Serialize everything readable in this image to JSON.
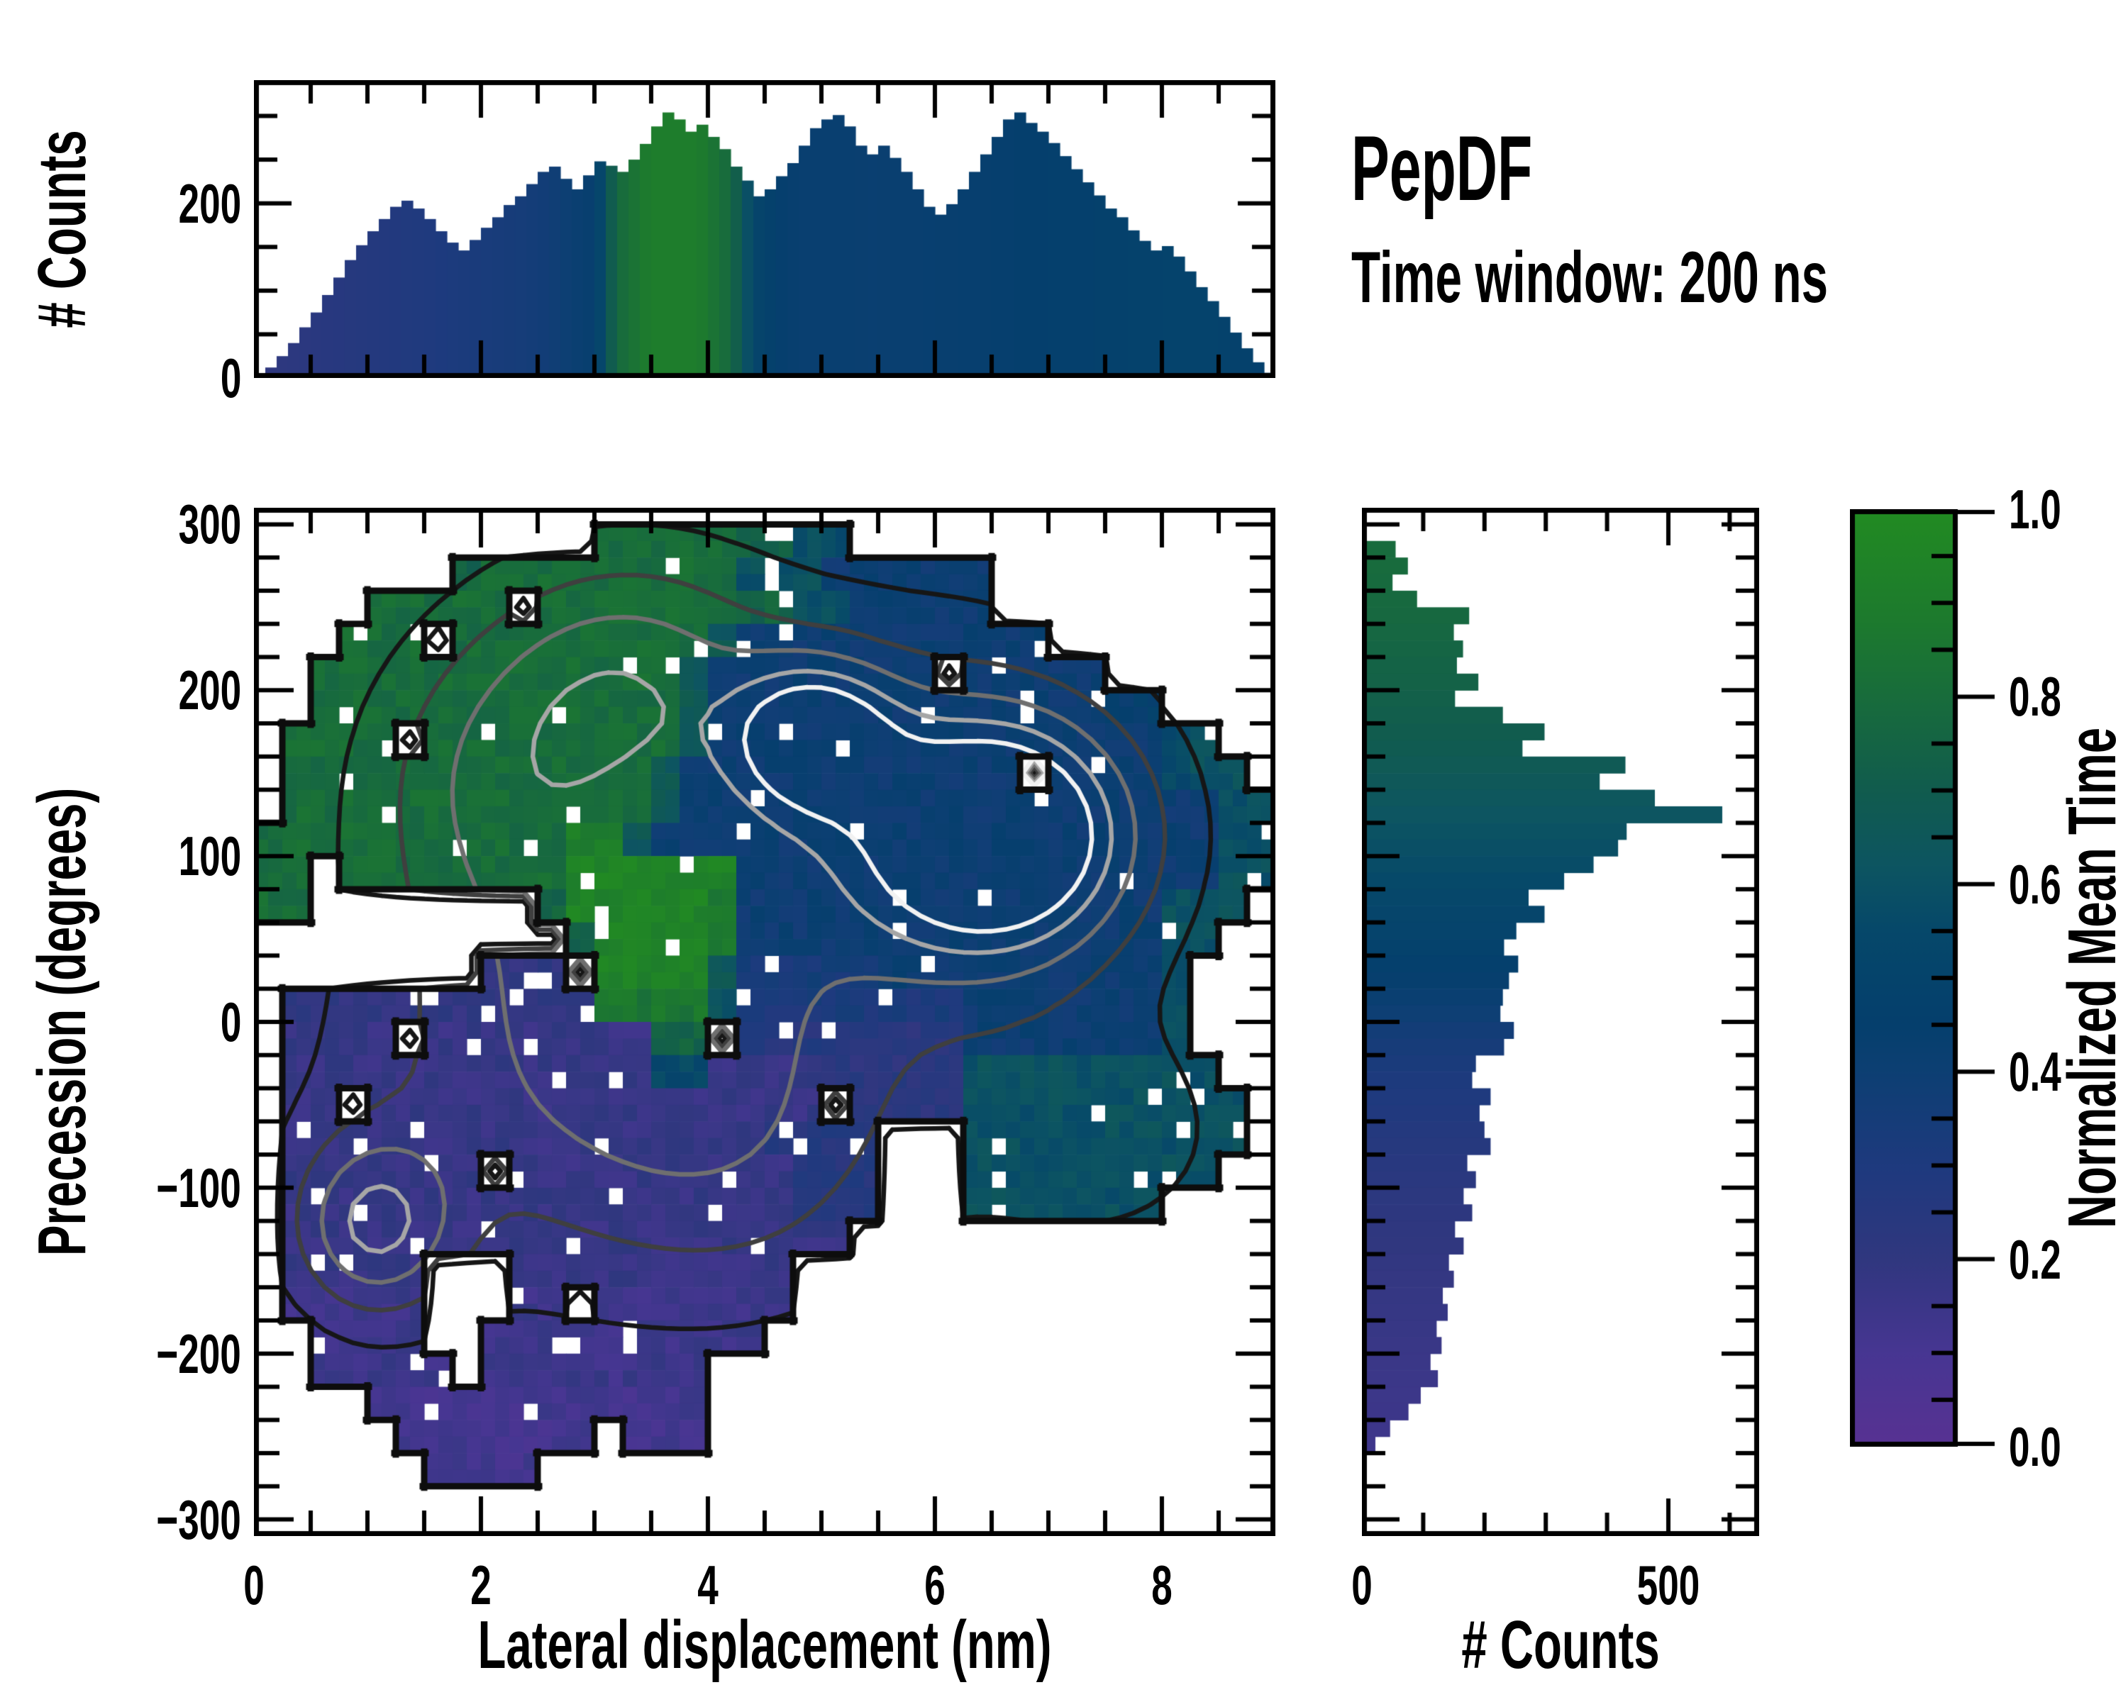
{
  "title": {
    "line1": "PepDF",
    "line2": "Time window: 200 ns"
  },
  "axes": {
    "x_label": "Lateral displacement (nm)",
    "y_label": "Precession (degrees)",
    "top_hist_y_label": "# Counts",
    "right_hist_x_label": "# Counts"
  },
  "colormap": {
    "label": "Normalized Mean Time",
    "stops": [
      [
        0,
        "#583293"
      ],
      [
        0.1,
        "#473692"
      ],
      [
        0.2,
        "#30377f"
      ],
      [
        0.3,
        "#1e3a7e"
      ],
      [
        0.4,
        "#0d3f73"
      ],
      [
        0.45,
        "#053f6d"
      ],
      [
        0.55,
        "#06486a"
      ],
      [
        0.62,
        "#0d5561"
      ],
      [
        0.7,
        "#115c4e"
      ],
      [
        0.78,
        "#17693f"
      ],
      [
        0.88,
        "#1d7a2e"
      ],
      [
        1,
        "#228b22"
      ]
    ],
    "tick_values": [
      0,
      0.2,
      0.4,
      0.6,
      0.8,
      1.0
    ],
    "tick_labels": [
      "0.0",
      "0.2",
      "0.4",
      "0.6",
      "0.8",
      "1.0"
    ],
    "minor_tick_step": 0.05
  },
  "chart_data": [
    {
      "type": "bar",
      "name": "top_marginal_histogram",
      "ylabel": "# Counts",
      "xlim": [
        0,
        9
      ],
      "ylim": [
        0,
        341
      ],
      "bin_width": 0.1,
      "x_start": 0.05,
      "yticks": {
        "major_values": [
          0,
          200
        ],
        "major_labels": [
          "0",
          "200"
        ],
        "minor_step": 50
      },
      "xticks": {
        "major_step": 2,
        "minor_step": 0.5
      },
      "values": [
        4,
        12,
        25,
        40,
        58,
        75,
        95,
        115,
        135,
        152,
        168,
        182,
        196,
        203,
        194,
        182,
        168,
        155,
        146,
        158,
        172,
        184,
        198,
        208,
        222,
        236,
        242,
        228,
        216,
        232,
        248,
        243,
        236,
        250,
        268,
        288,
        304,
        296,
        282,
        290,
        276,
        262,
        242,
        226,
        208,
        216,
        231,
        246,
        266,
        286,
        296,
        301,
        288,
        266,
        256,
        266,
        252,
        236,
        216,
        196,
        187,
        199,
        216,
        236,
        256,
        276,
        296,
        304,
        292,
        282,
        269,
        254,
        239,
        224,
        209,
        194,
        184,
        169,
        157,
        146,
        151,
        139,
        122,
        104,
        88,
        70,
        52,
        34,
        18,
        6
      ],
      "bar_color_mean_time_profile": [
        [
          0,
          0.2
        ],
        [
          0.6,
          0.24
        ],
        [
          1.6,
          0.3
        ],
        [
          2.5,
          0.36
        ],
        [
          3.0,
          0.44
        ],
        [
          3.2,
          0.78
        ],
        [
          3.5,
          0.9
        ],
        [
          3.9,
          0.9
        ],
        [
          4.2,
          0.78
        ],
        [
          4.4,
          0.52
        ],
        [
          4.7,
          0.43
        ],
        [
          5.5,
          0.42
        ],
        [
          6.5,
          0.44
        ],
        [
          7.5,
          0.47
        ],
        [
          8.3,
          0.5
        ],
        [
          9,
          0.45
        ]
      ]
    },
    {
      "type": "heatmap",
      "name": "mean_time_map",
      "xlabel": "Lateral displacement (nm)",
      "ylabel": "Precession (degrees)",
      "value_label": "Normalized Mean Time",
      "xlim": [
        0,
        9
      ],
      "ylim": [
        -310,
        310
      ],
      "xticks": {
        "major_values": [
          0,
          2,
          4,
          6,
          8
        ],
        "major_labels": [
          "0",
          "2",
          "4",
          "6",
          "8"
        ],
        "minor_step": 0.5
      },
      "yticks": {
        "major_values": [
          300,
          200,
          100,
          0,
          -100,
          -200,
          -300
        ],
        "major_labels": [
          "300",
          "200",
          "100",
          "0",
          "−100",
          "−200",
          "−300"
        ],
        "minor_step": 20
      },
      "grid_encoding": "each char is a cell; '.'=empty, base36 digit/35 = normalized mean time; cols: x=0..9 nm step 0.25; rows: y=300..-300 deg step -20",
      "grid": [
        "............sssssqqlj...............",
        ".......qsssssssssllleeeeee..........",
        "....sssss.sssssssqqllefeee..........",
        "...sss.sssssssssneeeeeeeeeee........",
        "..sssssssssssssneeeeeeee.eeeee......",
        "..sssssssssssssneeeeeeeeeeeeeefg....",
        ".ssss.sssssssssneeeeeeeeeeeeeeeejl..",
        ".sssssssssssssneeeeeeeeeeee.eeeejll.",
        ".sssssssssssssneeeeeeeeeeeeeeeeeeell",
        "ssssssssssswwneeeeeeeeeeeeeeeeeeeell",
        "ss.ssssssssxxxxxxeeeeeeeeeeeeeeeeell",
        "ss........qxxxxxueeeeeeeeeeeeeeelll.",
        "...........qxxxxueeeeeeeeeeeeeeell..",
        "........777.xxxxnccccceeeeeeeeeel...",
        ".77777777777uuuulbbbbbbbbeeeeeeel...",
        ".6666.66666666qq.99999988eeeeeeel...",
        ".6666666666666jj666688888lllllllll..",
        ".66.6666666666666666.8888llllllllll.",
        ".666666666666666669999...llllllllll.",
        ".6666666.6666666666999...lllllllll..",
        ".666666666666666666999...lllllll....",
        ".66666666666666666666...............",
        ".66666...6666666666.................",
        ".55555...55.5555555.................",
        "..5555..5555555555..................",
        "..55555.55555555....................",
        "....444444444444....................",
        ".....4444444.444....................",
        "......4444..........................",
        "...................................."
      ],
      "count_density_peaks_estimated": [
        {
          "x": 6.6,
          "y": 112,
          "sx": 0.8,
          "sy": 50,
          "amp": 1.0
        },
        {
          "x": 4.95,
          "y": 172,
          "sx": 0.5,
          "sy": 32,
          "amp": 0.72
        },
        {
          "x": 3.3,
          "y": 210,
          "sx": 0.9,
          "sy": 55,
          "amp": 0.5
        },
        {
          "x": 2.1,
          "y": 145,
          "sx": 0.85,
          "sy": 65,
          "amp": 0.4
        },
        {
          "x": 5.7,
          "y": 115,
          "sx": 1.5,
          "sy": 95,
          "amp": 0.45
        },
        {
          "x": 1.05,
          "y": -123,
          "sx": 0.5,
          "sy": 38,
          "amp": 0.62
        },
        {
          "x": 2.3,
          "y": -45,
          "sx": 1.4,
          "sy": 95,
          "amp": 0.3
        },
        {
          "x": 4.4,
          "y": -85,
          "sx": 1.1,
          "sy": 70,
          "amp": 0.3
        },
        {
          "x": 3.4,
          "y": 30,
          "sx": 1.2,
          "sy": 80,
          "amp": 0.32
        },
        {
          "x": 7.4,
          "y": -70,
          "sx": 0.9,
          "sy": 50,
          "amp": 0.24
        }
      ],
      "contour_levels": [
        0.16,
        0.34,
        0.52,
        0.7,
        0.86
      ],
      "contour_colors": [
        "#161616",
        "#3f3f3f",
        "#6f6f6f",
        "#a6a6a6",
        "#f2f2f2"
      ]
    },
    {
      "type": "bar",
      "name": "right_marginal_histogram",
      "orientation": "horizontal",
      "xlabel": "# Counts",
      "xlim": [
        0,
        648
      ],
      "ylim": [
        -310,
        310
      ],
      "bin_height_deg": 10,
      "y_start": 300,
      "xticks": {
        "major_values": [
          0,
          500
        ],
        "major_labels": [
          "0",
          "500"
        ],
        "minor_step": 100
      },
      "yticks": {
        "major_step": 100,
        "minor_step": 20
      },
      "values": [
        5,
        55,
        75,
        50,
        90,
        175,
        150,
        165,
        155,
        190,
        152,
        230,
        298,
        262,
        430,
        388,
        478,
        588,
        432,
        418,
        378,
        330,
        272,
        298,
        252,
        232,
        255,
        240,
        230,
        226,
        248,
        232,
        186,
        180,
        210,
        192,
        200,
        210,
        172,
        186,
        166,
        180,
        152,
        166,
        142,
        150,
        132,
        140,
        122,
        130,
        112,
        124,
        96,
        76,
        46,
        22,
        8,
        2,
        0,
        0
      ],
      "bar_color_mean_time_profile": [
        [
          300,
          0.8
        ],
        [
          250,
          0.78
        ],
        [
          200,
          0.73
        ],
        [
          160,
          0.68
        ],
        [
          130,
          0.63
        ],
        [
          100,
          0.58
        ],
        [
          70,
          0.53
        ],
        [
          40,
          0.47
        ],
        [
          10,
          0.41
        ],
        [
          -10,
          0.35
        ],
        [
          -40,
          0.3
        ],
        [
          -80,
          0.25
        ],
        [
          -120,
          0.21
        ],
        [
          -160,
          0.18
        ],
        [
          -200,
          0.16
        ],
        [
          -250,
          0.14
        ],
        [
          -300,
          0.13
        ]
      ]
    }
  ]
}
